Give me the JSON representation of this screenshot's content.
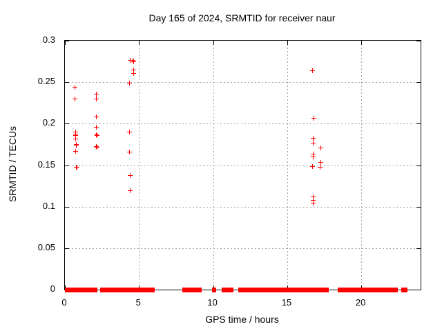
{
  "chart_data": {
    "type": "scatter",
    "title": "Day 165 of 2024, SRMTID for receiver naur",
    "xlabel": "GPS time / hours",
    "ylabel": "SRMTID / TECUs",
    "xlim": [
      0,
      24
    ],
    "ylim": [
      0,
      0.3
    ],
    "grid": true,
    "legend_position": "none",
    "marker": "plus",
    "marker_color": "#ff0000",
    "grid_color": "#a0a0a0",
    "border_color": "#000000",
    "x_ticks": [
      {
        "v": 0,
        "label": "0"
      },
      {
        "v": 5,
        "label": "5"
      },
      {
        "v": 10,
        "label": "10"
      },
      {
        "v": 15,
        "label": "15"
      },
      {
        "v": 20,
        "label": "20"
      }
    ],
    "y_ticks": [
      {
        "v": 0,
        "label": "0"
      },
      {
        "v": 0.05,
        "label": "0.05"
      },
      {
        "v": 0.1,
        "label": "0.1"
      },
      {
        "v": 0.15,
        "label": "0.15"
      },
      {
        "v": 0.2,
        "label": "0.2"
      },
      {
        "v": 0.25,
        "label": "0.25"
      },
      {
        "v": 0.3,
        "label": "0.3"
      }
    ],
    "points": [
      [
        0.67,
        0.244
      ],
      [
        0.67,
        0.23
      ],
      [
        0.72,
        0.19
      ],
      [
        0.72,
        0.188
      ],
      [
        0.72,
        0.186
      ],
      [
        0.72,
        0.182
      ],
      [
        0.73,
        0.175
      ],
      [
        0.74,
        0.174
      ],
      [
        0.72,
        0.167
      ],
      [
        0.76,
        0.148
      ],
      [
        0.79,
        0.148
      ],
      [
        2.1,
        0.236
      ],
      [
        2.1,
        0.23
      ],
      [
        2.12,
        0.209
      ],
      [
        2.12,
        0.196
      ],
      [
        2.12,
        0.187
      ],
      [
        2.15,
        0.186
      ],
      [
        2.12,
        0.173
      ],
      [
        2.15,
        0.172
      ],
      [
        4.36,
        0.277
      ],
      [
        4.55,
        0.277
      ],
      [
        4.63,
        0.275
      ],
      [
        4.6,
        0.265
      ],
      [
        4.6,
        0.261
      ],
      [
        4.33,
        0.249
      ],
      [
        4.33,
        0.19
      ],
      [
        4.33,
        0.166
      ],
      [
        4.36,
        0.138
      ],
      [
        4.36,
        0.12
      ],
      [
        16.68,
        0.264
      ],
      [
        16.79,
        0.207
      ],
      [
        16.73,
        0.183
      ],
      [
        16.73,
        0.177
      ],
      [
        17.24,
        0.171
      ],
      [
        16.73,
        0.164
      ],
      [
        16.74,
        0.16
      ],
      [
        17.24,
        0.154
      ],
      [
        16.68,
        0.149
      ],
      [
        17.2,
        0.148
      ],
      [
        16.73,
        0.112
      ],
      [
        16.73,
        0.108
      ],
      [
        16.74,
        0.105
      ]
    ],
    "zero_value_segments_hours": [
      [
        0.08,
        0.38
      ],
      [
        0.45,
        0.64
      ],
      [
        0.68,
        0.96
      ],
      [
        1.02,
        1.24
      ],
      [
        1.3,
        2.08
      ],
      [
        2.47,
        3.1
      ],
      [
        3.15,
        3.26
      ],
      [
        3.32,
        3.82
      ],
      [
        3.86,
        5.05
      ],
      [
        5.15,
        5.52
      ],
      [
        5.57,
        5.95
      ],
      [
        8.0,
        8.11
      ],
      [
        8.17,
        8.45
      ],
      [
        8.5,
        9.15
      ],
      [
        10.03,
        10.1
      ],
      [
        10.68,
        10.97
      ],
      [
        11.09,
        11.27
      ],
      [
        11.78,
        12.03
      ],
      [
        12.07,
        12.4
      ],
      [
        12.46,
        12.56
      ],
      [
        12.7,
        12.84
      ],
      [
        13.0,
        13.6
      ],
      [
        13.7,
        14.08
      ],
      [
        14.17,
        14.34
      ],
      [
        14.4,
        14.57
      ],
      [
        14.74,
        15.49
      ],
      [
        15.56,
        16.3
      ],
      [
        16.38,
        16.77
      ],
      [
        16.85,
        17.55
      ],
      [
        17.6,
        17.72
      ],
      [
        18.5,
        18.62
      ],
      [
        18.75,
        19.1
      ],
      [
        19.2,
        19.65
      ],
      [
        19.72,
        20.0
      ],
      [
        20.08,
        20.5
      ],
      [
        20.6,
        20.94
      ],
      [
        20.97,
        21.15
      ],
      [
        21.36,
        21.9
      ],
      [
        22.09,
        22.21
      ],
      [
        22.29,
        22.37
      ],
      [
        22.8,
        22.88
      ],
      [
        22.96,
        23.02
      ]
    ]
  }
}
